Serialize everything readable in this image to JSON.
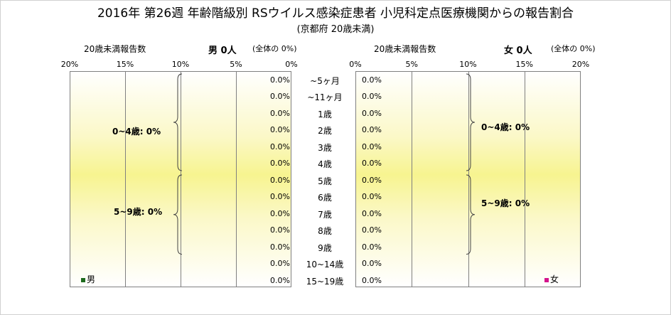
{
  "title": "2016年 第26週 年齢階級別 RSウイルス感染症患者 小児科定点医療機関からの報告割合",
  "subtitle": "(京都府 20歳未満)",
  "header": {
    "left_label": "20歳未満報告数",
    "right_label": "20歳未満報告数",
    "male_label": "男 0人",
    "male_share": "(全体の 0%)",
    "female_label": "女 0人",
    "female_share": "(全体の 0%)"
  },
  "colors": {
    "male": "#1e6b1e",
    "female": "#d4148c",
    "plot_bg": "#f7f490"
  },
  "chart_data": {
    "type": "bar",
    "orientation": "horizontal-pyramid",
    "categories": [
      "~5ヶ月",
      "~11ヶ月",
      "1歳",
      "2歳",
      "3歳",
      "4歳",
      "5歳",
      "6歳",
      "7歳",
      "8歳",
      "9歳",
      "10~14歳",
      "15~19歳"
    ],
    "x_ticks_left": [
      "20%",
      "15%",
      "10%",
      "5%",
      "0%"
    ],
    "x_ticks_right": [
      "0%",
      "5%",
      "10%",
      "15%",
      "20%"
    ],
    "xlim": [
      0,
      20
    ],
    "series": [
      {
        "name": "男",
        "values": [
          0,
          0,
          0,
          0,
          0,
          0,
          0,
          0,
          0,
          0,
          0,
          0,
          0
        ],
        "labels": [
          "0.0%",
          "0.0%",
          "0.0%",
          "0.0%",
          "0.0%",
          "0.0%",
          "0.0%",
          "0.0%",
          "0.0%",
          "0.0%",
          "0.0%",
          "0.0%",
          "0.0%"
        ]
      },
      {
        "name": "女",
        "values": [
          0,
          0,
          0,
          0,
          0,
          0,
          0,
          0,
          0,
          0,
          0,
          0,
          0
        ],
        "labels": [
          "0.0%",
          "0.0%",
          "0.0%",
          "0.0%",
          "0.0%",
          "0.0%",
          "0.0%",
          "0.0%",
          "0.0%",
          "0.0%",
          "0.0%",
          "0.0%",
          "0.0%"
        ]
      }
    ],
    "groups": {
      "male": [
        "0~4歳: 0%",
        "5~9歳: 0%"
      ],
      "female": [
        "0~4歳: 0%",
        "5~9歳: 0%"
      ]
    },
    "legend": [
      "男",
      "女"
    ]
  }
}
